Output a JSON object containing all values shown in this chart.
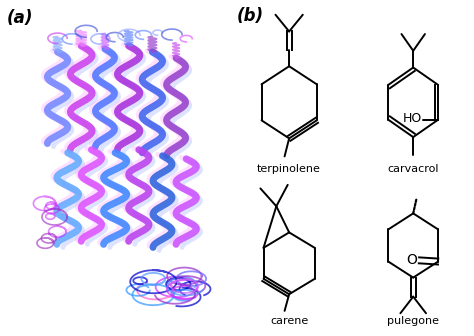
{
  "panel_a_label": "(a)",
  "panel_b_label": "(b)",
  "compounds": [
    "terpinolene",
    "carvacrol",
    "carene",
    "pulegone"
  ],
  "background_color": "#ffffff",
  "label_fontsize": 12,
  "compound_fontsize": 8,
  "label_fontweight": "bold",
  "line_color": "#000000",
  "line_width": 1.4,
  "helix_colors": [
    "#5599ff",
    "#9933cc",
    "#cc66ff",
    "#3377ff",
    "#0000cc",
    "#cc33ff",
    "#7755dd",
    "#aabbff",
    "#ff66cc",
    "#6633aa"
  ],
  "loop_colors": [
    "#6666ff",
    "#cc33ff",
    "#3399ff",
    "#0000cc",
    "#9933cc",
    "#cc66ff",
    "#ff99ff",
    "#5588ee"
  ],
  "protein_bg": "#ffffff"
}
